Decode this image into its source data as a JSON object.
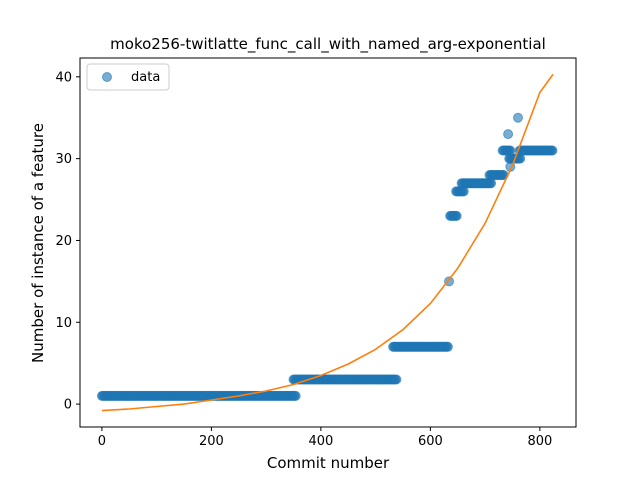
{
  "chart_data": {
    "type": "scatter",
    "title": "moko256-twitlatte_func_call_with_named_arg-exponential",
    "xlabel": "Commit number",
    "ylabel": "Number of instance of a feature",
    "xlim": [
      -40,
      866
    ],
    "ylim": [
      -2.8,
      42.3
    ],
    "xticks": [
      0,
      200,
      400,
      600,
      800
    ],
    "yticks": [
      0,
      10,
      20,
      30,
      40
    ],
    "legend": {
      "position": "top-left",
      "entries": [
        "data"
      ]
    },
    "colors": {
      "data": "#1f77b4",
      "fit": "#ff7f0e",
      "axes": "#000000"
    },
    "series": [
      {
        "name": "data",
        "kind": "scatter",
        "segments": [
          {
            "x_start": 0,
            "x_end": 355,
            "y": 1
          },
          {
            "x_start": 350,
            "x_end": 538,
            "y": 3
          },
          {
            "x_start": 532,
            "x_end": 632,
            "y": 7
          },
          {
            "x_start": 636,
            "x_end": 648,
            "y": 23
          },
          {
            "x_start": 647,
            "x_end": 661,
            "y": 26
          },
          {
            "x_start": 657,
            "x_end": 711,
            "y": 27
          },
          {
            "x_start": 708,
            "x_end": 734,
            "y": 28
          },
          {
            "x_start": 732,
            "x_end": 746,
            "y": 31
          },
          {
            "x_start": 744,
            "x_end": 764,
            "y": 30
          },
          {
            "x_start": 763,
            "x_end": 824,
            "y": 31
          }
        ],
        "points": [
          {
            "x": 634,
            "y": 15
          },
          {
            "x": 742,
            "y": 33
          },
          {
            "x": 746,
            "y": 29
          },
          {
            "x": 760,
            "y": 35
          }
        ]
      },
      {
        "kind": "line",
        "x": [
          0,
          50,
          100,
          150,
          200,
          250,
          300,
          350,
          400,
          450,
          500,
          550,
          600,
          650,
          700,
          750,
          800,
          824
        ],
        "y": [
          -0.8,
          -0.6,
          -0.3,
          0.0,
          0.5,
          1.0,
          1.6,
          2.4,
          3.5,
          4.9,
          6.7,
          9.1,
          12.3,
          16.6,
          22.1,
          29.2,
          38.1,
          40.3
        ]
      }
    ]
  }
}
